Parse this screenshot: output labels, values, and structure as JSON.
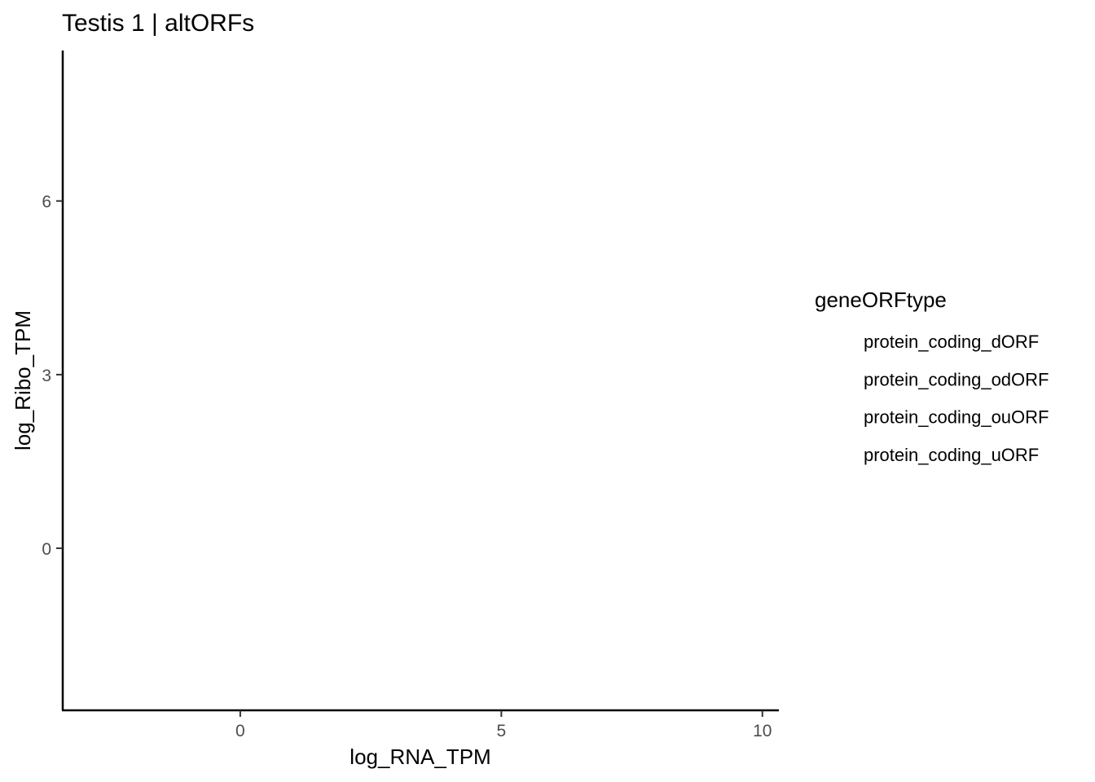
{
  "chart_data": {
    "type": "scatter",
    "title": "Testis 1 | altORFs",
    "xlabel": "log_RNA_TPM",
    "ylabel": "log_Ribo_TPM",
    "xlim": [
      -3.4,
      10.3
    ],
    "ylim": [
      -2.8,
      8.6
    ],
    "xticks": [
      0,
      5,
      10
    ],
    "xtick_labels": [
      "0",
      "5",
      "10"
    ],
    "yticks": [
      0,
      3,
      6
    ],
    "ytick_labels": [
      "0",
      "3",
      "6"
    ],
    "grid": false,
    "legend_position": "right",
    "legend": {
      "title": "geneORFtype",
      "entries": [
        "protein_coding_dORF",
        "protein_coding_odORF",
        "protein_coding_ouORF",
        "protein_coding_uORF"
      ]
    },
    "series": []
  }
}
